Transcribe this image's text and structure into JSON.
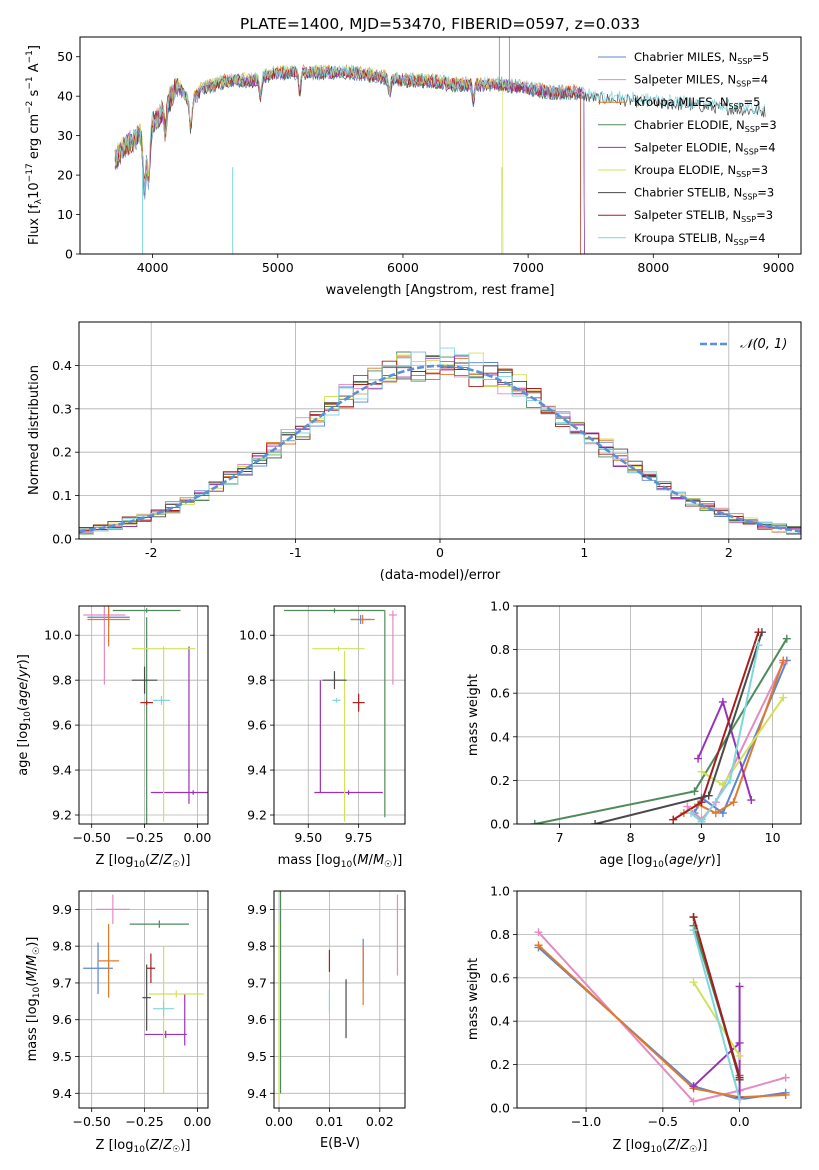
{
  "figure": {
    "title": "PLATE=1400, MJD=53470, FIBERID=0597, z=0.033"
  },
  "colors": [
    "#5b84d6",
    "#e58ac3",
    "#e07a2a",
    "#4f8a5b",
    "#9a32b6",
    "#d2e15c",
    "#4a4a4a",
    "#a81e1e",
    "#7fd6dc"
  ],
  "chart_data": [
    {
      "id": "spectrum",
      "type": "line",
      "title": "PLATE=1400, MJD=53470, FIBERID=0597, z=0.033",
      "xlabel": "wavelength [Angstrom, rest frame]",
      "ylabel": "Flux [f_λ10^-17 erg cm^-2 s^-1 A^-1]",
      "xlim": [
        3420,
        9180
      ],
      "ylim": [
        0,
        55
      ],
      "xticks": [
        4000,
        5000,
        6000,
        7000,
        8000,
        9000
      ],
      "yticks": [
        0,
        10,
        20,
        30,
        40,
        50
      ],
      "grid": false,
      "legend_position": "top-right",
      "legend": [
        "Chabrier MILES, N_SSP=5",
        "Salpeter MILES, N_SSP=4",
        "Kroupa MILES, N_SSP=5",
        "Chabrier ELODIE, N_SSP=3",
        "Salpeter ELODIE, N_SSP=4",
        "Kroupa ELODIE, N_SSP=3",
        "Chabrier STELIB, N_SSP=3",
        "Salpeter STELIB, N_SSP=3",
        "Kroupa STELIB, N_SSP=4"
      ],
      "continuum": {
        "x": [
          3700,
          3800,
          3900,
          3950,
          4000,
          4100,
          4200,
          4300,
          4400,
          4600,
          4800,
          5000,
          5200,
          5400,
          5600,
          5800,
          6000,
          6200,
          6400,
          6600,
          6800,
          7000,
          7200,
          7400,
          7500
        ],
        "y": [
          24,
          28,
          30,
          24,
          33,
          37,
          43,
          38,
          42,
          44,
          44,
          46,
          46,
          46,
          46,
          45,
          44,
          44,
          43,
          43,
          43,
          42,
          41,
          41,
          40
        ]
      },
      "model_ranges": [
        [
          3700,
          7450
        ],
        [
          3700,
          7450
        ],
        [
          3700,
          7420
        ],
        [
          3700,
          7450
        ],
        [
          3700,
          7450
        ],
        [
          3700,
          6800
        ],
        [
          3700,
          8900
        ],
        [
          3700,
          7420
        ],
        [
          3700,
          8900
        ]
      ]
    },
    {
      "id": "residuals",
      "type": "histogram",
      "xlabel": "(data-model)/error",
      "ylabel": "Normed distribution",
      "xlim": [
        -2.5,
        2.5
      ],
      "ylim": [
        0,
        0.5
      ],
      "xticks": [
        -2,
        -1,
        0,
        1,
        2
      ],
      "yticks": [
        0.0,
        0.1,
        0.2,
        0.3,
        0.4
      ],
      "grid": true,
      "bin_width": 0.1,
      "legend_position": "top-right",
      "reference": {
        "label": "𝒩(0, 1)",
        "mu": 0,
        "sigma": 1
      }
    },
    {
      "id": "z-vs-age",
      "type": "errorbar",
      "xlabel": "Z [log10(Z/Z☉)]",
      "ylabel": "age [log10(age/yr)]",
      "xlim": [
        -0.56,
        0.05
      ],
      "ylim": [
        9.16,
        10.13
      ],
      "xticks": [
        -0.5,
        -0.25,
        0.0
      ],
      "xticklabels": [
        "−0.50",
        "−0.25",
        "0.00"
      ],
      "yticks": [
        9.2,
        9.4,
        9.6,
        9.8,
        10.0
      ],
      "grid": true,
      "points": [
        {
          "s": 0,
          "x": -0.42,
          "y": 10.08,
          "xe": 0.1,
          "ye": 0.04
        },
        {
          "s": 1,
          "x": -0.44,
          "y": 10.09,
          "xe": 0.1,
          "ye": 0.02
        },
        {
          "s": 1,
          "x": -0.44,
          "y": 9.98,
          "xe": 0.0,
          "ye": 0.2
        },
        {
          "s": 2,
          "x": -0.42,
          "y": 10.07,
          "xe": 0.1,
          "ye": 0.12
        },
        {
          "s": 3,
          "x": -0.24,
          "y": 10.11,
          "xe": 0.16,
          "ye": 0.01
        },
        {
          "s": 3,
          "x": -0.24,
          "y": 9.62,
          "xe": 0.0,
          "ye": 0.46
        },
        {
          "s": 4,
          "x": -0.02,
          "y": 9.3,
          "xe": 0.2,
          "ye": 0.01
        },
        {
          "s": 4,
          "x": -0.04,
          "y": 9.6,
          "xe": 0.0,
          "ye": 0.35
        },
        {
          "s": 5,
          "x": -0.16,
          "y": 9.94,
          "xe": 0.15,
          "ye": 0.01
        },
        {
          "s": 5,
          "x": -0.16,
          "y": 9.55,
          "xe": 0.0,
          "ye": 0.38
        },
        {
          "s": 6,
          "x": -0.25,
          "y": 9.8,
          "xe": 0.06,
          "ye": 0.06
        },
        {
          "s": 7,
          "x": -0.24,
          "y": 9.7,
          "xe": 0.03,
          "ye": 0.01
        },
        {
          "s": 8,
          "x": -0.17,
          "y": 9.71,
          "xe": 0.04,
          "ye": 0.02
        }
      ]
    },
    {
      "id": "mass-vs-age",
      "type": "errorbar",
      "xlabel": "mass [log10(M/M☉)]",
      "ylabel": "",
      "xlim": [
        9.33,
        9.98
      ],
      "ylim": [
        9.16,
        10.13
      ],
      "xticks": [
        9.5,
        9.75
      ],
      "xticklabels": [
        "9.50",
        "9.75"
      ],
      "yticks": [
        9.2,
        9.4,
        9.6,
        9.8,
        10.0
      ],
      "grid": true,
      "points": [
        {
          "s": 0,
          "x": 9.76,
          "y": 10.07,
          "xe": 0.05,
          "ye": 0.02
        },
        {
          "s": 1,
          "x": 9.92,
          "y": 10.09,
          "xe": 0.02,
          "ye": 0.02
        },
        {
          "s": 1,
          "x": 9.92,
          "y": 9.93,
          "xe": 0.0,
          "ye": 0.15
        },
        {
          "s": 2,
          "x": 9.77,
          "y": 10.07,
          "xe": 0.06,
          "ye": 0.02
        },
        {
          "s": 3,
          "x": 9.63,
          "y": 10.11,
          "xe": 0.25,
          "ye": 0.01
        },
        {
          "s": 3,
          "x": 9.88,
          "y": 9.65,
          "xe": 0.0,
          "ye": 0.46
        },
        {
          "s": 4,
          "x": 9.7,
          "y": 9.3,
          "xe": 0.17,
          "ye": 0.01
        },
        {
          "s": 4,
          "x": 9.56,
          "y": 9.55,
          "xe": 0.0,
          "ye": 0.25
        },
        {
          "s": 5,
          "x": 9.65,
          "y": 9.94,
          "xe": 0.13,
          "ye": 0.01
        },
        {
          "s": 5,
          "x": 9.68,
          "y": 9.55,
          "xe": 0.0,
          "ye": 0.38
        },
        {
          "s": 6,
          "x": 9.63,
          "y": 9.8,
          "xe": 0.06,
          "ye": 0.04
        },
        {
          "s": 7,
          "x": 9.75,
          "y": 9.7,
          "xe": 0.03,
          "ye": 0.04
        },
        {
          "s": 8,
          "x": 9.64,
          "y": 9.71,
          "xe": 0.02,
          "ye": 0.01
        }
      ]
    },
    {
      "id": "age-vs-weight",
      "type": "line",
      "xlabel": "age [log10(age/yr)]",
      "ylabel": "mass weight",
      "xlim": [
        6.4,
        10.4
      ],
      "ylim": [
        0,
        1
      ],
      "xticks": [
        7,
        8,
        9,
        10
      ],
      "yticks": [
        0.0,
        0.2,
        0.4,
        0.6,
        0.8,
        1.0
      ],
      "grid": true,
      "series": [
        {
          "s": 0,
          "x": [
            8.9,
            9.0,
            9.3,
            10.2
          ],
          "y": [
            0.05,
            0.12,
            0.05,
            0.75
          ]
        },
        {
          "s": 1,
          "x": [
            8.8,
            9.0,
            9.2,
            10.15
          ],
          "y": [
            0.08,
            0.02,
            0.1,
            0.74
          ]
        },
        {
          "s": 2,
          "x": [
            8.75,
            8.95,
            9.2,
            9.45,
            10.15
          ],
          "y": [
            0.05,
            0.09,
            0.05,
            0.1,
            0.75
          ]
        },
        {
          "s": 3,
          "x": [
            6.65,
            8.9,
            10.2
          ],
          "y": [
            0.0,
            0.15,
            0.85
          ]
        },
        {
          "s": 4,
          "x": [
            8.95,
            9.3,
            9.7
          ],
          "y": [
            0.3,
            0.56,
            0.11
          ]
        },
        {
          "s": 5,
          "x": [
            9.0,
            9.3,
            10.15
          ],
          "y": [
            0.24,
            0.18,
            0.58
          ]
        },
        {
          "s": 6,
          "x": [
            7.5,
            9.1,
            9.85
          ],
          "y": [
            0.0,
            0.13,
            0.88
          ]
        },
        {
          "s": 7,
          "x": [
            8.6,
            9.0,
            9.8
          ],
          "y": [
            0.02,
            0.1,
            0.88
          ]
        },
        {
          "s": 8,
          "x": [
            8.85,
            9.0,
            9.4,
            9.8
          ],
          "y": [
            0.05,
            0.01,
            0.2,
            0.82
          ]
        }
      ]
    },
    {
      "id": "z-vs-mass",
      "type": "errorbar",
      "xlabel": "Z [log10(Z/Z☉)]",
      "ylabel": "mass [log10(M/M☉)]",
      "xlim": [
        -0.56,
        0.05
      ],
      "ylim": [
        9.36,
        9.95
      ],
      "xticks": [
        -0.5,
        -0.25,
        0.0
      ],
      "xticklabels": [
        "−0.50",
        "−0.25",
        "0.00"
      ],
      "yticks": [
        9.4,
        9.5,
        9.6,
        9.7,
        9.8,
        9.9
      ],
      "grid": true,
      "points": [
        {
          "s": 0,
          "x": -0.47,
          "y": 9.74,
          "xe": 0.07,
          "ye": 0.07
        },
        {
          "s": 1,
          "x": -0.4,
          "y": 9.9,
          "xe": 0.08,
          "ye": 0.04
        },
        {
          "s": 2,
          "x": -0.42,
          "y": 9.76,
          "xe": 0.05,
          "ye": 0.1
        },
        {
          "s": 3,
          "x": -0.18,
          "y": 9.86,
          "xe": 0.14,
          "ye": 0.01
        },
        {
          "s": 4,
          "x": -0.15,
          "y": 9.56,
          "xe": 0.1,
          "ye": 0.01
        },
        {
          "s": 4,
          "x": -0.06,
          "y": 9.6,
          "xe": 0.0,
          "ye": 0.07
        },
        {
          "s": 5,
          "x": -0.1,
          "y": 9.67,
          "xe": 0.13,
          "ye": 0.01
        },
        {
          "s": 5,
          "x": -0.16,
          "y": 9.6,
          "xe": 0.0,
          "ye": 0.2
        },
        {
          "s": 6,
          "x": -0.24,
          "y": 9.66,
          "xe": 0.02,
          "ye": 0.09
        },
        {
          "s": 7,
          "x": -0.22,
          "y": 9.74,
          "xe": 0.02,
          "ye": 0.04
        },
        {
          "s": 8,
          "x": -0.16,
          "y": 9.63,
          "xe": 0.05,
          "ye": 0.02
        }
      ]
    },
    {
      "id": "ebv-vs-mass",
      "type": "errorbar",
      "xlabel": "E(B-V)",
      "ylabel": "",
      "xlim": [
        -0.001,
        0.025
      ],
      "ylim": [
        9.36,
        9.95
      ],
      "xticks": [
        0.0,
        0.01,
        0.02
      ],
      "xticklabels": [
        "0.00",
        "0.01",
        "0.02"
      ],
      "yticks": [
        9.4,
        9.5,
        9.6,
        9.7,
        9.8,
        9.9
      ],
      "grid": true,
      "points": [
        {
          "s": 0,
          "x": 0.0167,
          "y": 9.76,
          "xe": 0.0,
          "ye": 0.06
        },
        {
          "s": 1,
          "x": 0.0235,
          "y": 9.83,
          "xe": 0.0,
          "ye": 0.11
        },
        {
          "s": 2,
          "x": 0.0167,
          "y": 9.72,
          "xe": 0.0,
          "ye": 0.08
        },
        {
          "s": 3,
          "x": 0.0003,
          "y": 9.68,
          "xe": 0.0,
          "ye": 0.28
        },
        {
          "s": 5,
          "x": 0.0,
          "y": 9.62,
          "xe": 0.0,
          "ye": 0.24
        },
        {
          "s": 6,
          "x": 0.0133,
          "y": 9.63,
          "xe": 0.0,
          "ye": 0.08
        },
        {
          "s": 7,
          "x": 0.01,
          "y": 9.76,
          "xe": 0.0,
          "ye": 0.03
        },
        {
          "s": 8,
          "x": 0.01,
          "y": 9.65,
          "xe": 0.0,
          "ye": 0.03
        }
      ]
    },
    {
      "id": "z-vs-weight",
      "type": "line",
      "xlabel": "Z [log10(Z/Z☉)]",
      "ylabel": "mass weight",
      "xlim": [
        -1.45,
        0.4
      ],
      "ylim": [
        0,
        1
      ],
      "xticks": [
        -1.0,
        -0.5,
        0.0
      ],
      "xticklabels": [
        "−1.0",
        "−0.5",
        "0.0"
      ],
      "yticks": [
        0.0,
        0.2,
        0.4,
        0.6,
        0.8,
        1.0
      ],
      "grid": true,
      "series": [
        {
          "s": 0,
          "x": [
            -1.31,
            -0.3,
            0.0,
            0.3
          ],
          "y": [
            0.74,
            0.1,
            0.04,
            0.07
          ]
        },
        {
          "s": 1,
          "x": [
            -1.31,
            -0.3,
            0.0,
            0.3
          ],
          "y": [
            0.81,
            0.03,
            0.08,
            0.14
          ]
        },
        {
          "s": 2,
          "x": [
            -1.31,
            -0.3,
            0.0,
            0.3
          ],
          "y": [
            0.75,
            0.09,
            0.05,
            0.06
          ]
        },
        {
          "s": 3,
          "x": [
            -0.3,
            0.0
          ],
          "y": [
            0.84,
            0.15
          ]
        },
        {
          "s": 4,
          "x": [
            -0.3,
            0.0,
            0.0,
            0.0
          ],
          "y": [
            0.1,
            0.3,
            0.56,
            0.05
          ]
        },
        {
          "s": 5,
          "x": [
            -0.3,
            0.0
          ],
          "y": [
            0.58,
            0.24
          ]
        },
        {
          "s": 6,
          "x": [
            -0.3,
            0.0
          ],
          "y": [
            0.88,
            0.13
          ]
        },
        {
          "s": 7,
          "x": [
            -0.3,
            0.0
          ],
          "y": [
            0.88,
            0.14
          ]
        },
        {
          "s": 8,
          "x": [
            -0.3,
            0.0
          ],
          "y": [
            0.82,
            0.04
          ]
        }
      ]
    }
  ]
}
